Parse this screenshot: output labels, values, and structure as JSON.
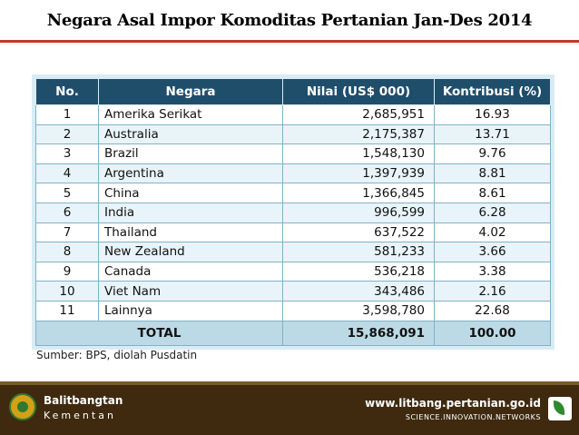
{
  "title": "Negara Asal Impor Komoditas Pertanian Jan-Des 2014",
  "table": {
    "headers": [
      "No.",
      "Negara",
      "Nilai (US$ 000)",
      "Kontribusi (%)"
    ],
    "rows": [
      {
        "no": "1",
        "negara": "Amerika Serikat",
        "nilai": "2,685,951",
        "kontribusi": "16.93"
      },
      {
        "no": "2",
        "negara": "Australia",
        "nilai": "2,175,387",
        "kontribusi": "13.71"
      },
      {
        "no": "3",
        "negara": "Brazil",
        "nilai": "1,548,130",
        "kontribusi": "9.76"
      },
      {
        "no": "4",
        "negara": "Argentina",
        "nilai": "1,397,939",
        "kontribusi": "8.81"
      },
      {
        "no": "5",
        "negara": "China",
        "nilai": "1,366,845",
        "kontribusi": "8.61"
      },
      {
        "no": "6",
        "negara": "India",
        "nilai": "996,599",
        "kontribusi": "6.28"
      },
      {
        "no": "7",
        "negara": "Thailand",
        "nilai": "637,522",
        "kontribusi": "4.02"
      },
      {
        "no": "8",
        "negara": "New Zealand",
        "nilai": "581,233",
        "kontribusi": "3.66"
      },
      {
        "no": "9",
        "negara": "Canada",
        "nilai": "536,218",
        "kontribusi": "3.38"
      },
      {
        "no": "10",
        "negara": "Viet Nam",
        "nilai": "343,486",
        "kontribusi": "2.16"
      },
      {
        "no": "11",
        "negara": "Lainnya",
        "nilai": "3,598,780",
        "kontribusi": "22.68"
      }
    ],
    "total": {
      "label": "TOTAL",
      "nilai": "15,868,091",
      "kontribusi": "100.00"
    }
  },
  "source": "Sumber: BPS, diolah Pusdatin",
  "footer": {
    "brand_line1": "Balitbangtan",
    "brand_line2": "Kementan",
    "url": "www.litbang.pertanian.go.id",
    "tagline": "SCIENCE.INNOVATION.NETWORKS",
    "logo_icon": "balitbangtan-logo-icon",
    "right_icon": "kementan-leaf-icon"
  },
  "colors": {
    "title_rule": "#c0392b",
    "table_header": "#1f4e6b",
    "footer_bg": "#3f2a10"
  }
}
